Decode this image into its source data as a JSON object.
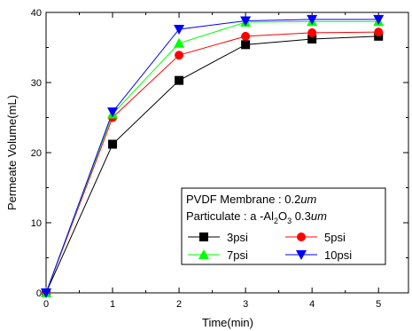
{
  "chart_data": {
    "type": "line",
    "xlabel": "Time(min)",
    "ylabel": "Permeate Volume(mL)",
    "xlim": [
      0,
      5.45
    ],
    "ylim": [
      0,
      40
    ],
    "x_ticks": [
      0,
      1,
      2,
      3,
      4,
      5
    ],
    "y_ticks": [
      0,
      10,
      20,
      30,
      40
    ],
    "x": [
      0,
      1,
      2,
      3,
      4,
      5
    ],
    "grid": false,
    "legend_placement": "bottom-right",
    "legend_lines": {
      "line1_text": "PVDF Membrane : 0.2",
      "line1_unit": "um",
      "line2_prefix": "Particulate : a  -Al",
      "line2_sub": "2",
      "line2_mid": "O",
      "line2_sub2": "3",
      "line2_value": " 0.3",
      "line2_unit": "um"
    },
    "series": [
      {
        "name": "3psi",
        "color": "#000000",
        "marker": "square",
        "values": [
          0,
          21.2,
          30.3,
          35.4,
          36.2,
          36.6
        ]
      },
      {
        "name": "5psi",
        "color": "#ff0000",
        "marker": "circle",
        "values": [
          0,
          25.0,
          33.9,
          36.6,
          37.1,
          37.2
        ]
      },
      {
        "name": "7psi",
        "color": "#00ff00",
        "marker": "triangle-up",
        "values": [
          0,
          25.5,
          35.6,
          38.6,
          38.7,
          38.7
        ]
      },
      {
        "name": "10psi",
        "color": "#0000ff",
        "marker": "triangle-down",
        "values": [
          0,
          25.8,
          37.6,
          38.8,
          39.0,
          39.0
        ]
      }
    ]
  }
}
